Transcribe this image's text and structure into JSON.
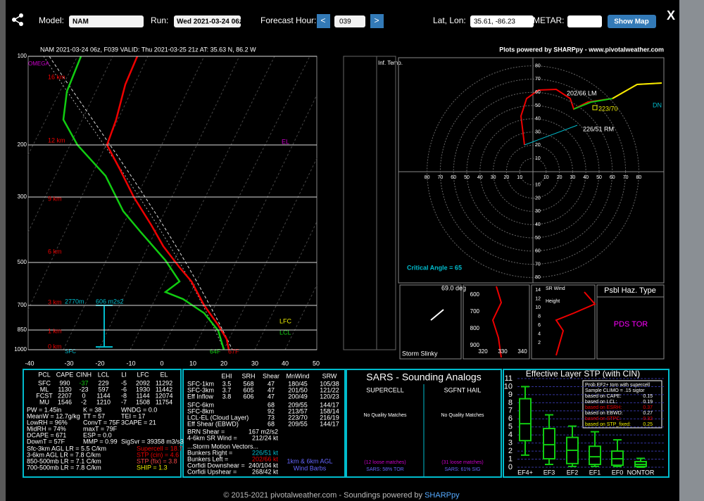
{
  "toolbar": {
    "model_label": "Model:",
    "model": "NAM",
    "run_label": "Run:",
    "run": "Wed 2021-03-24 06z",
    "hour_label": "Forecast Hour:",
    "hour": "039",
    "prev": "<",
    "next": ">",
    "latlon_label": "Lat, Lon:",
    "latlon": "35.61, -86.23",
    "metar_label": "METAR:",
    "show_map": "Show Map",
    "close": "X"
  },
  "header": {
    "title": "NAM 2021-03-24 06z, F039  VALID: Thu 2021-03-25 21z  AT: 35.63 N, 86.2 W",
    "credit": "Plots powered by SHARPpy - www.pivotalweather.com"
  },
  "skewt": {
    "pressure_labels": [
      "100",
      "200",
      "300",
      "500",
      "700",
      "850",
      "1000"
    ],
    "height_labels": [
      "16 km",
      "12 km",
      "9 km",
      "6 km",
      "3 km",
      "1 km",
      "0 km"
    ],
    "temp_labels": [
      "-40",
      "-30",
      "-20",
      "-10",
      "0",
      "10",
      "20",
      "30",
      "40",
      "50"
    ],
    "omega": "OMEGA",
    "el": "EL",
    "lfc": "LFC",
    "lcl": "LCL",
    "sfc": "SFC",
    "temp": "67F",
    "dewpoint": "64F",
    "eff_top": "2770m",
    "eff_srh": "606 m2s2",
    "inf_temp": "Inf. Temp."
  },
  "hodograph": {
    "ring_labels": [
      "10",
      "20",
      "30",
      "40",
      "50",
      "60",
      "70",
      "80"
    ],
    "left_mover": "202/66 LM",
    "right_mover": "226/51 RM",
    "mean_wind": "223/70",
    "downshear": "DN",
    "critical_angle": "Critical Angle = 65"
  },
  "slinky": {
    "angle": "69.0 deg",
    "label": "Storm Slinky"
  },
  "theta": {
    "pressure_ticks": [
      "600",
      "700",
      "800",
      "900"
    ],
    "theta_ticks": [
      "320",
      "330",
      "340"
    ]
  },
  "srwind": {
    "title": "SR Wind",
    "height": "Height",
    "ticks": [
      "14",
      "12",
      "10",
      "8",
      "6",
      "4",
      "2"
    ]
  },
  "hazard": {
    "title": "Psbl Haz. Type",
    "value": "PDS TOR"
  },
  "parcels": {
    "header": [
      "PCL",
      "CAPE",
      "CINH",
      "LCL",
      "LI",
      "LFC",
      "EL"
    ],
    "rows": [
      [
        "SFC",
        "990",
        "-37",
        "229",
        "-5",
        "2092",
        "11292"
      ],
      [
        "ML",
        "1130",
        "-23",
        "597",
        "-6",
        "1930",
        "11442"
      ],
      [
        "FCST",
        "2207",
        "0",
        "1144",
        "-8",
        "1144",
        "12074"
      ],
      [
        "MU",
        "1546",
        "-2",
        "1210",
        "-7",
        "1508",
        "11754"
      ]
    ],
    "indices": [
      [
        "PW = 1.45in",
        "K = 38",
        "WNDG = 0.0"
      ],
      [
        "MeanW = 12.7g/kg",
        "TT = 57",
        "TEI = 17"
      ],
      [
        "LowRH = 96%",
        "ConvT = 75F",
        "3CAPE = 21"
      ],
      [
        "MidRH = 74%",
        "maxT = 79F"
      ],
      [
        "DCAPE = 671",
        "ESP = 0.0"
      ],
      [
        "DownT = 57F",
        "MMP = 0.99",
        "SigSvr = 39358 m3/s3"
      ]
    ],
    "lapse_rates": [
      "Sfc-3km AGL LR = 5.5 C/km",
      "3-6km AGL LR = 7.8 C/km",
      "850-500mb LR = 7.1 C/km",
      "700-500mb LR = 7.8 C/km"
    ],
    "composites": [
      "Supercell = 18.7",
      "STP (cin) = 4.6",
      "STP (fix) = 3.8",
      "SHIP = 1.3"
    ]
  },
  "kinematics": {
    "header": [
      "EHI",
      "SRH",
      "Shear",
      "MnWind",
      "SRW"
    ],
    "rows": [
      [
        "SFC-1km",
        "3.5",
        "568",
        "47",
        "180/45",
        "105/38"
      ],
      [
        "SFC-3km",
        "3.7",
        "605",
        "47",
        "201/50",
        "121/22"
      ],
      [
        "Eff Inflow",
        "3.8",
        "606",
        "47",
        "200/49",
        "120/23"
      ]
    ],
    "shear_rows": [
      [
        "SFC-6km",
        "68",
        "209/55",
        "144/17"
      ],
      [
        "SFC-8km",
        "92",
        "213/57",
        "158/14"
      ],
      [
        "LCL-EL (Cloud Layer)",
        "73",
        "223/70",
        "216/19"
      ],
      [
        "Eff Shear (EBWD)",
        "68",
        "209/55",
        "144/17"
      ]
    ],
    "brn": [
      "BRN Shear =",
      "167 m2/s2"
    ],
    "sr_wind": [
      "4-6km SR Wind =",
      "212/24 kt"
    ],
    "motion_title": "...Storm Motion Vectors...",
    "motions": [
      [
        "Bunkers Right =",
        "226/51 kt"
      ],
      [
        "Bunkers Left =",
        "202/66 kt"
      ],
      [
        "Corfidi Downshear =",
        "240/104 kt"
      ],
      [
        "Corfidi Upshear =",
        "268/42 kt"
      ]
    ],
    "barbs_label": [
      "1km & 6km AGL",
      "Wind Barbs"
    ]
  },
  "sars": {
    "title": "SARS - Sounding Analogs",
    "supercell": {
      "title": "SUPERCELL",
      "matches": "No Quality Matches",
      "loose": "(12 loose matches)",
      "prob": "SARS: 58% TOR"
    },
    "hail": {
      "title": "SGFNT HAIL",
      "matches": "No Quality Matches",
      "loose": "(31 loose matches)",
      "prob": "SARS: 61% SIG"
    }
  },
  "stp": {
    "title": "Effective Layer STP (with CIN)",
    "ylim": [
      0,
      11
    ],
    "yticks": [
      0,
      1,
      2,
      3,
      4,
      5,
      6,
      7,
      8,
      9,
      10,
      11
    ],
    "categories": [
      "EF4+",
      "EF3",
      "EF2",
      "EF1",
      "EF0",
      "NONTOR"
    ],
    "boxes": [
      {
        "low": 1.5,
        "q1": 3.3,
        "median": 5.4,
        "q3": 8.5,
        "high": 10
      },
      {
        "low": 0.35,
        "q1": 1.05,
        "median": 2.8,
        "q3": 4.8,
        "high": 6.5
      },
      {
        "low": 0.1,
        "q1": 0.45,
        "median": 2.1,
        "q3": 3.7,
        "high": 5.1
      },
      {
        "low": 0.1,
        "q1": 0.35,
        "median": 1.3,
        "q3": 2.6,
        "high": 4.4
      },
      {
        "low": 0.1,
        "q1": 0.25,
        "median": 1.05,
        "q3": 2,
        "high": 3.4
      },
      {
        "low": 0,
        "q1": 0.1,
        "median": 0.35,
        "q3": 0.7,
        "high": 1.1
      }
    ],
    "legend_title": [
      "Prob EF2+ torn with supercell",
      "Sample CLIMO = .15 sigtor"
    ],
    "legend": [
      [
        "based on CAPE:",
        "0.15"
      ],
      [
        "based on LCL:",
        "0.19"
      ],
      [
        "based on ESRH:",
        "0.37"
      ],
      [
        "based on EBWD:",
        "0.27"
      ],
      [
        "based on STPC:",
        "0.32"
      ],
      [
        "based on STP_fixed:",
        "0.25"
      ]
    ]
  },
  "footer": {
    "text": "© 2015-2021 pivotalweather.com - Soundings powered by ",
    "link": "SHARPpy"
  }
}
